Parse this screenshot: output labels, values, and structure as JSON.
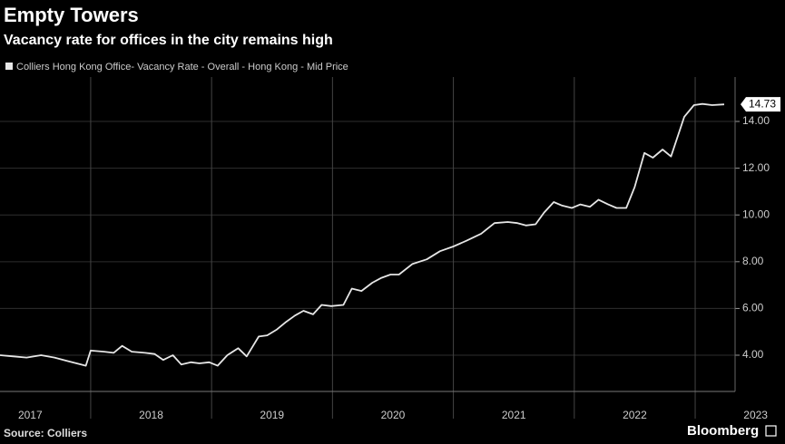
{
  "chart_data": {
    "type": "line",
    "title": "Empty Towers",
    "subtitle": "Vacancy rate for offices in the city remains high",
    "source": "Source: Colliers",
    "brand": "Bloomberg",
    "x": [
      2017.25,
      2017.36,
      2017.47,
      2017.59,
      2017.7,
      2017.81,
      2017.92,
      2017.96,
      2018.0,
      2018.11,
      2018.19,
      2018.26,
      2018.34,
      2018.45,
      2018.53,
      2018.6,
      2018.68,
      2018.75,
      2018.83,
      2018.9,
      2018.98,
      2019.05,
      2019.13,
      2019.22,
      2019.29,
      2019.39,
      2019.46,
      2019.54,
      2019.61,
      2019.69,
      2019.76,
      2019.84,
      2019.91,
      2019.99,
      2020.09,
      2020.16,
      2020.24,
      2020.33,
      2020.4,
      2020.48,
      2020.55,
      2020.66,
      2020.78,
      2020.89,
      2021.0,
      2021.11,
      2021.23,
      2021.34,
      2021.45,
      2021.53,
      2021.6,
      2021.68,
      2021.75,
      2021.83,
      2021.9,
      2021.98,
      2022.05,
      2022.13,
      2022.2,
      2022.28,
      2022.35,
      2022.43,
      2022.5,
      2022.58,
      2022.65,
      2022.73,
      2022.8,
      2022.91,
      2022.99,
      2023.06,
      2023.14,
      2023.24
    ],
    "series": [
      {
        "name": "Colliers Hong Kong Office- Vacancy Rate - Overall - Hong Kong - Mid Price",
        "color": "#e6e6e6",
        "values": [
          4.0,
          3.95,
          3.9,
          4.0,
          3.9,
          3.75,
          3.6,
          3.55,
          4.2,
          4.15,
          4.1,
          4.4,
          4.15,
          4.1,
          4.05,
          3.8,
          4.0,
          3.6,
          3.7,
          3.65,
          3.7,
          3.55,
          4.0,
          4.3,
          3.95,
          4.8,
          4.85,
          5.1,
          5.4,
          5.7,
          5.9,
          5.75,
          6.15,
          6.1,
          6.15,
          6.85,
          6.75,
          7.1,
          7.3,
          7.45,
          7.45,
          7.9,
          8.1,
          8.45,
          8.65,
          8.9,
          9.2,
          9.65,
          9.7,
          9.65,
          9.55,
          9.6,
          10.1,
          10.55,
          10.4,
          10.3,
          10.45,
          10.35,
          10.65,
          10.45,
          10.3,
          10.3,
          11.2,
          12.65,
          12.45,
          12.8,
          12.5,
          14.2,
          14.7,
          14.75,
          14.7,
          14.73
        ]
      }
    ],
    "xlim": [
      2017.25,
      2023.33
    ],
    "xticks": [
      2017,
      2018,
      2019,
      2020,
      2021,
      2022,
      2023
    ],
    "ylim": [
      2.45,
      15.9
    ],
    "yticks": [
      {
        "value": 4,
        "label": "4.00"
      },
      {
        "value": 6,
        "label": "6.00"
      },
      {
        "value": 8,
        "label": "8.00"
      },
      {
        "value": 10,
        "label": "10.00"
      },
      {
        "value": 12,
        "label": "12.00"
      },
      {
        "value": 14,
        "label": "14.00"
      }
    ],
    "grid": true
  }
}
